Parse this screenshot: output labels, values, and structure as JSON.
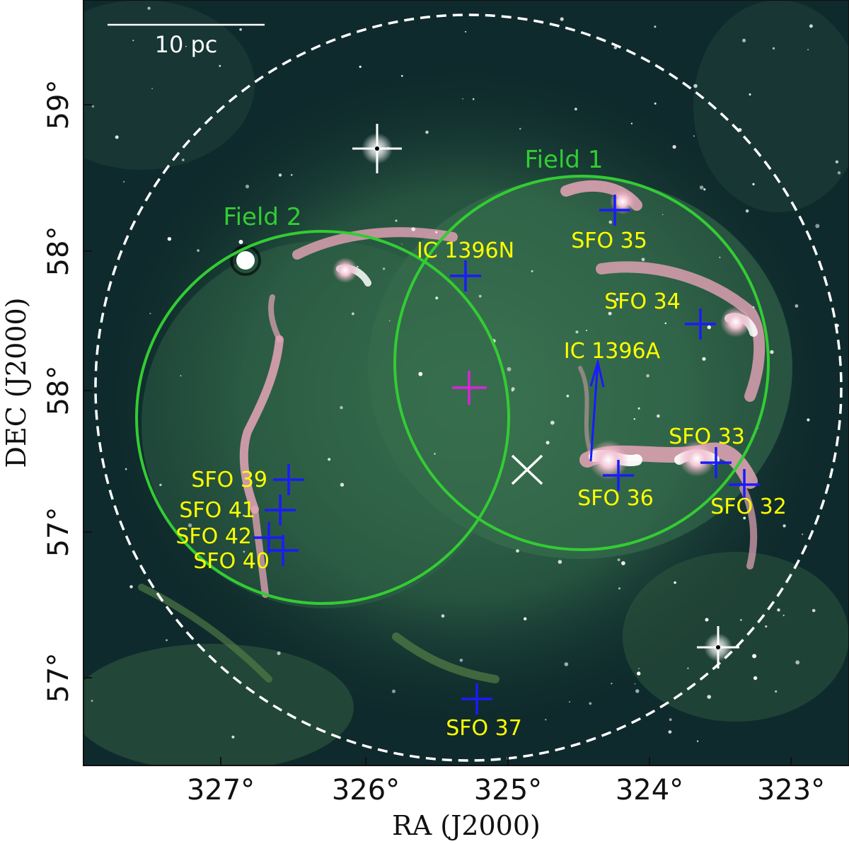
{
  "axes": {
    "xlabel": "RA (J2000)",
    "ylabel": "DEC (J2000)",
    "x_ticks": [
      "327°",
      "326°",
      "325°",
      "324°",
      "323°"
    ],
    "y_ticks": [
      "59°",
      "58°",
      "58°",
      "57°",
      "57°"
    ]
  },
  "scale_bar": {
    "label": "10 pc"
  },
  "fields": [
    {
      "label": "Field 1"
    },
    {
      "label": "Field 2"
    }
  ],
  "sources": [
    {
      "label": "SFO 35"
    },
    {
      "label": "IC 1396N"
    },
    {
      "label": "SFO 34"
    },
    {
      "label": "IC 1396A"
    },
    {
      "label": "SFO 33"
    },
    {
      "label": "SFO 36"
    },
    {
      "label": "SFO 32"
    },
    {
      "label": "SFO 39"
    },
    {
      "label": "SFO 41"
    },
    {
      "label": "SFO 42"
    },
    {
      "label": "SFO 40"
    },
    {
      "label": "SFO 37"
    }
  ],
  "colors": {
    "background": "#0f2a2c",
    "nebula_green": "#3f7a55",
    "filament_pink": "#e6a4b8",
    "field_circle": "#33cc33",
    "source_marker": "#1a1aff",
    "center_marker": "#dd22dd",
    "star_marker": "#ffffff",
    "label_text": "#ffff00"
  }
}
